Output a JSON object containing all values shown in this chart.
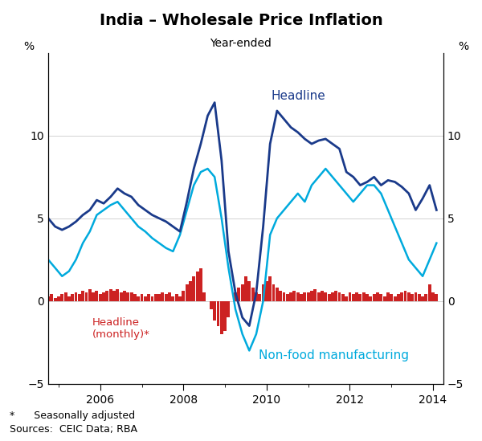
{
  "title": "India – Wholesale Price Inflation",
  "subtitle": "Year-ended",
  "ylabel_left": "%",
  "ylabel_right": "%",
  "ylim": [
    -5,
    15
  ],
  "yticks": [
    -5,
    0,
    5,
    10
  ],
  "xlim_start": 2004.75,
  "xlim_end": 2014.25,
  "xtick_labels": [
    "2006",
    "2008",
    "2010",
    "2012",
    "2014"
  ],
  "xtick_positions": [
    2006,
    2008,
    2010,
    2012,
    2014
  ],
  "headline_color": "#1a3a8a",
  "nonfood_color": "#00aadd",
  "bar_color": "#cc2222",
  "footnote1": "*      Seasonally adjusted",
  "footnote2": "Sources:  CEIC Data; RBA",
  "headline_label": "Headline",
  "nonfood_label": "Non-food manufacturing",
  "bar_label_line1": "Headline",
  "bar_label_line2": "(monthly)*",
  "headline_annual": {
    "dates": [
      2004.75,
      2004.917,
      2005.083,
      2005.25,
      2005.417,
      2005.583,
      2005.75,
      2005.917,
      2006.083,
      2006.25,
      2006.417,
      2006.583,
      2006.75,
      2006.917,
      2007.083,
      2007.25,
      2007.417,
      2007.583,
      2007.75,
      2007.917,
      2008.083,
      2008.25,
      2008.417,
      2008.583,
      2008.75,
      2008.917,
      2009.083,
      2009.25,
      2009.417,
      2009.583,
      2009.75,
      2009.917,
      2010.083,
      2010.25,
      2010.417,
      2010.583,
      2010.75,
      2010.917,
      2011.083,
      2011.25,
      2011.417,
      2011.583,
      2011.75,
      2011.917,
      2012.083,
      2012.25,
      2012.417,
      2012.583,
      2012.75,
      2012.917,
      2013.083,
      2013.25,
      2013.417,
      2013.583,
      2013.75,
      2013.917,
      2014.083
    ],
    "values": [
      5.0,
      4.5,
      4.3,
      4.5,
      4.8,
      5.2,
      5.5,
      6.1,
      5.9,
      6.3,
      6.8,
      6.5,
      6.3,
      5.8,
      5.5,
      5.2,
      5.0,
      4.8,
      4.5,
      4.2,
      6.0,
      8.0,
      9.5,
      11.2,
      12.0,
      8.5,
      3.0,
      0.5,
      -1.0,
      -1.5,
      0.5,
      4.5,
      9.5,
      11.5,
      11.0,
      10.5,
      10.2,
      9.8,
      9.5,
      9.7,
      9.8,
      9.5,
      9.2,
      7.8,
      7.5,
      7.0,
      7.2,
      7.5,
      7.0,
      7.3,
      7.2,
      6.9,
      6.5,
      5.5,
      6.2,
      7.0,
      5.5
    ]
  },
  "nonfood_annual": {
    "dates": [
      2004.75,
      2004.917,
      2005.083,
      2005.25,
      2005.417,
      2005.583,
      2005.75,
      2005.917,
      2006.083,
      2006.25,
      2006.417,
      2006.583,
      2006.75,
      2006.917,
      2007.083,
      2007.25,
      2007.417,
      2007.583,
      2007.75,
      2007.917,
      2008.083,
      2008.25,
      2008.417,
      2008.583,
      2008.75,
      2008.917,
      2009.083,
      2009.25,
      2009.417,
      2009.583,
      2009.75,
      2009.917,
      2010.083,
      2010.25,
      2010.417,
      2010.583,
      2010.75,
      2010.917,
      2011.083,
      2011.25,
      2011.417,
      2011.583,
      2011.75,
      2011.917,
      2012.083,
      2012.25,
      2012.417,
      2012.583,
      2012.75,
      2012.917,
      2013.083,
      2013.25,
      2013.417,
      2013.583,
      2013.75,
      2013.917,
      2014.083
    ],
    "values": [
      2.5,
      2.0,
      1.5,
      1.8,
      2.5,
      3.5,
      4.2,
      5.2,
      5.5,
      5.8,
      6.0,
      5.5,
      5.0,
      4.5,
      4.2,
      3.8,
      3.5,
      3.2,
      3.0,
      4.0,
      5.5,
      7.0,
      7.8,
      8.0,
      7.5,
      5.0,
      2.0,
      -0.5,
      -2.0,
      -3.0,
      -2.0,
      0.0,
      4.0,
      5.0,
      5.5,
      6.0,
      6.5,
      6.0,
      7.0,
      7.5,
      8.0,
      7.5,
      7.0,
      6.5,
      6.0,
      6.5,
      7.0,
      7.0,
      6.5,
      5.5,
      4.5,
      3.5,
      2.5,
      2.0,
      1.5,
      2.5,
      3.5
    ]
  },
  "bars": {
    "dates": [
      2004.75,
      2004.833,
      2004.917,
      2005.0,
      2005.083,
      2005.167,
      2005.25,
      2005.333,
      2005.417,
      2005.5,
      2005.583,
      2005.667,
      2005.75,
      2005.833,
      2005.917,
      2006.0,
      2006.083,
      2006.167,
      2006.25,
      2006.333,
      2006.417,
      2006.5,
      2006.583,
      2006.667,
      2006.75,
      2006.833,
      2006.917,
      2007.0,
      2007.083,
      2007.167,
      2007.25,
      2007.333,
      2007.417,
      2007.5,
      2007.583,
      2007.667,
      2007.75,
      2007.833,
      2007.917,
      2008.0,
      2008.083,
      2008.167,
      2008.25,
      2008.333,
      2008.417,
      2008.5,
      2008.583,
      2008.667,
      2008.75,
      2008.833,
      2008.917,
      2009.0,
      2009.083,
      2009.167,
      2009.25,
      2009.333,
      2009.417,
      2009.5,
      2009.583,
      2009.667,
      2009.75,
      2009.833,
      2009.917,
      2010.0,
      2010.083,
      2010.167,
      2010.25,
      2010.333,
      2010.417,
      2010.5,
      2010.583,
      2010.667,
      2010.75,
      2010.833,
      2010.917,
      2011.0,
      2011.083,
      2011.167,
      2011.25,
      2011.333,
      2011.417,
      2011.5,
      2011.583,
      2011.667,
      2011.75,
      2011.833,
      2011.917,
      2012.0,
      2012.083,
      2012.167,
      2012.25,
      2012.333,
      2012.417,
      2012.5,
      2012.583,
      2012.667,
      2012.75,
      2012.833,
      2012.917,
      2013.0,
      2013.083,
      2013.167,
      2013.25,
      2013.333,
      2013.417,
      2013.5,
      2013.583,
      2013.667,
      2013.75,
      2013.833,
      2013.917,
      2014.0,
      2014.083
    ],
    "values": [
      0.3,
      0.4,
      0.2,
      0.3,
      0.4,
      0.5,
      0.3,
      0.4,
      0.5,
      0.4,
      0.6,
      0.5,
      0.7,
      0.5,
      0.6,
      0.4,
      0.5,
      0.6,
      0.7,
      0.6,
      0.7,
      0.5,
      0.6,
      0.5,
      0.5,
      0.4,
      0.3,
      0.4,
      0.3,
      0.4,
      0.3,
      0.4,
      0.4,
      0.5,
      0.4,
      0.5,
      0.3,
      0.4,
      0.3,
      0.6,
      1.0,
      1.2,
      1.5,
      1.8,
      2.0,
      0.5,
      0.0,
      -0.5,
      -1.2,
      -1.5,
      -2.0,
      -1.8,
      -1.0,
      0.0,
      0.5,
      0.8,
      1.0,
      1.5,
      1.2,
      0.8,
      0.5,
      0.4,
      1.0,
      1.2,
      1.5,
      1.0,
      0.8,
      0.6,
      0.5,
      0.4,
      0.5,
      0.6,
      0.5,
      0.4,
      0.5,
      0.5,
      0.6,
      0.7,
      0.5,
      0.6,
      0.5,
      0.4,
      0.5,
      0.6,
      0.5,
      0.4,
      0.3,
      0.5,
      0.4,
      0.5,
      0.4,
      0.5,
      0.4,
      0.3,
      0.4,
      0.5,
      0.4,
      0.3,
      0.5,
      0.4,
      0.3,
      0.4,
      0.5,
      0.6,
      0.5,
      0.4,
      0.5,
      0.4,
      0.3,
      0.4,
      1.0,
      0.5,
      0.4
    ]
  }
}
